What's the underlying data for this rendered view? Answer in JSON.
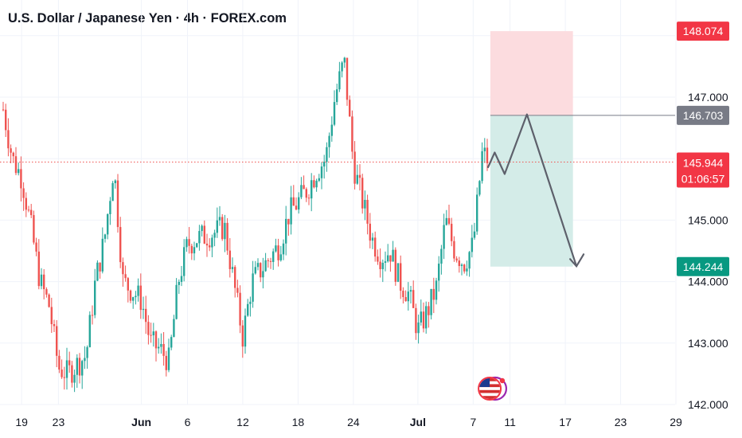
{
  "header": {
    "title": "U.S. Dollar / Japanese Yen · 4h · FOREX.com"
  },
  "colors": {
    "up": "#26a69a",
    "down": "#ef5350",
    "stop_zone": "#fcdcdf",
    "target_zone": "#d4ece8",
    "price_badge": "#f23645",
    "stop_badge": "#f23645",
    "entry_badge": "#787b86",
    "target_badge": "#089981",
    "arrow": "#5d606b"
  },
  "badges": {
    "stop": "148.074",
    "entry": "146.703",
    "last_price": "145.944",
    "countdown": "01:06:57",
    "target": "144.244"
  },
  "icons": [
    "lightning-event-icon",
    "us-flag-icon"
  ],
  "chart_data": {
    "type": "candlestick",
    "title": "U.S. Dollar / Japanese Yen · 4h · FOREX.com",
    "ylim": [
      142.0,
      148.3
    ],
    "y_ticks": [
      142.0,
      143.0,
      144.0,
      145.0,
      146.0,
      147.0,
      148.0
    ],
    "y_tick_labels": [
      "142.000",
      "143.000",
      "144.000",
      "145.000",
      "",
      "147.000",
      ""
    ],
    "x_tick_labels": [
      "19",
      "23",
      "Jun",
      "6",
      "12",
      "18",
      "24",
      "Jul",
      "7",
      "11",
      "17",
      "23",
      "29"
    ],
    "x_start": "2025-05-17",
    "x_end": "2025-07-29",
    "last_price": 145.944,
    "price_path": [
      [
        "2025-05-17",
        146.8
      ],
      [
        "2025-05-18",
        146.0
      ],
      [
        "2025-05-19",
        145.7
      ],
      [
        "2025-05-20",
        144.9
      ],
      [
        "2025-05-21",
        144.0
      ],
      [
        "2025-05-22",
        143.6
      ],
      [
        "2025-05-23",
        142.6
      ],
      [
        "2025-05-24",
        142.5
      ],
      [
        "2025-05-26",
        142.8
      ],
      [
        "2025-05-27",
        144.0
      ],
      [
        "2025-05-28",
        144.7
      ],
      [
        "2025-05-29",
        145.9
      ],
      [
        "2025-05-30",
        144.0
      ],
      [
        "2025-06-01",
        143.7
      ],
      [
        "2025-06-02",
        143.0
      ],
      [
        "2025-06-03",
        142.9
      ],
      [
        "2025-06-04",
        142.7
      ],
      [
        "2025-06-05",
        144.0
      ],
      [
        "2025-06-06",
        144.6
      ],
      [
        "2025-06-07",
        144.7
      ],
      [
        "2025-06-09",
        144.8
      ],
      [
        "2025-06-10",
        144.9
      ],
      [
        "2025-06-11",
        144.0
      ],
      [
        "2025-06-12",
        143.1
      ],
      [
        "2025-06-13",
        144.0
      ],
      [
        "2025-06-14",
        144.2
      ],
      [
        "2025-06-16",
        144.6
      ],
      [
        "2025-06-17",
        145.1
      ],
      [
        "2025-06-18",
        145.3
      ],
      [
        "2025-06-19",
        145.5
      ],
      [
        "2025-06-20",
        145.8
      ],
      [
        "2025-06-21",
        146.0
      ],
      [
        "2025-06-22",
        147.0
      ],
      [
        "2025-06-23",
        147.6
      ],
      [
        "2025-06-24",
        145.9
      ],
      [
        "2025-06-25",
        145.3
      ],
      [
        "2025-06-26",
        144.7
      ],
      [
        "2025-06-27",
        144.4
      ],
      [
        "2025-06-28",
        144.5
      ],
      [
        "2025-06-29",
        144.0
      ],
      [
        "2025-06-30",
        143.8
      ],
      [
        "2025-07-01",
        143.2
      ],
      [
        "2025-07-02",
        143.5
      ],
      [
        "2025-07-03",
        143.9
      ],
      [
        "2025-07-04",
        145.0
      ],
      [
        "2025-07-05",
        144.5
      ],
      [
        "2025-07-06",
        144.3
      ],
      [
        "2025-07-07",
        144.6
      ],
      [
        "2025-07-08",
        146.1
      ],
      [
        "2025-07-08T18",
        145.944
      ]
    ],
    "position": {
      "type": "short",
      "entry": 146.703,
      "stop": 148.074,
      "target": 144.244,
      "from": "2025-07-08",
      "to": "2025-07-18"
    },
    "projection": [
      [
        "2025-07-08T14",
        145.85
      ],
      [
        "2025-07-09T08",
        146.1
      ],
      [
        "2025-07-10T10",
        145.75
      ],
      [
        "2025-07-12T20",
        146.72
      ],
      [
        "2025-07-18T05",
        144.25
      ]
    ],
    "events": [
      {
        "date": "2025-07-08",
        "icon": "lightning-event-icon"
      },
      {
        "date": "2025-07-10",
        "icon": "us-flag-icon"
      }
    ]
  }
}
